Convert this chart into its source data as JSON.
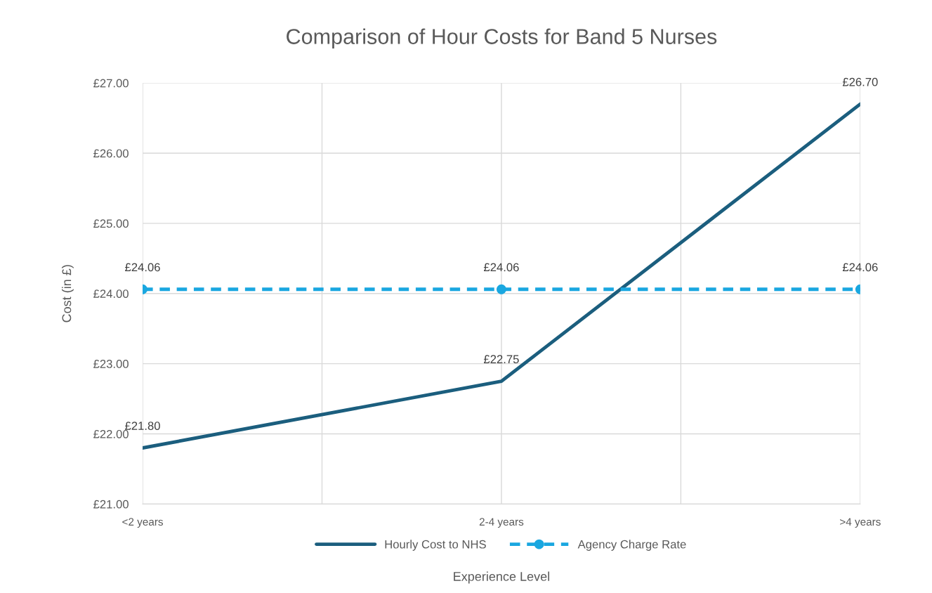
{
  "chart_data": {
    "type": "line",
    "title": "Comparison of Hour Costs for Band 5 Nurses",
    "xlabel": "Experience Level",
    "ylabel": "Cost (in £)",
    "categories": [
      "<2 years",
      "2-4 years",
      ">4 years"
    ],
    "series": [
      {
        "name": "Hourly Cost to NHS",
        "color": "#1b5e7e",
        "values": [
          21.8,
          22.75,
          26.7
        ],
        "value_labels": [
          "£21.80",
          "£22.75",
          "£26.70"
        ],
        "marker": "none",
        "line_style": "solid"
      },
      {
        "name": "Agency Charge Rate",
        "color": "#1aa7e0",
        "values": [
          24.06,
          24.06,
          24.06
        ],
        "value_labels": [
          "£24.06",
          "£24.06",
          "£24.06"
        ],
        "marker": "circle",
        "line_style": "dashed"
      }
    ],
    "ylim": [
      21,
      27
    ],
    "yticks": [
      {
        "value": 21,
        "label": "£21.00"
      },
      {
        "value": 22,
        "label": "£22.00"
      },
      {
        "value": 23,
        "label": "£23.00"
      },
      {
        "value": 24,
        "label": "£24.00"
      },
      {
        "value": 25,
        "label": "£25.00"
      },
      {
        "value": 26,
        "label": "£26.00"
      },
      {
        "value": 27,
        "label": "£27.00"
      }
    ],
    "grid": true,
    "legend": "bottom"
  }
}
